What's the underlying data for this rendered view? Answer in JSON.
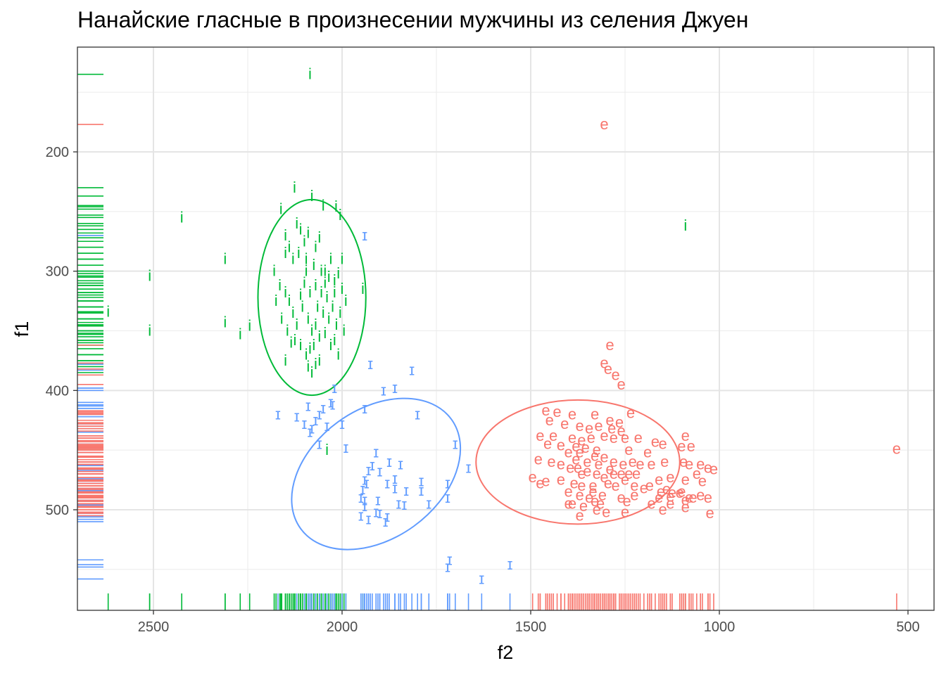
{
  "chart_data": {
    "type": "scatter",
    "title": "Нанайские гласные в произнесении мужчины из селения Джуен",
    "xlabel": "f2",
    "ylabel": "f1",
    "x_reversed": true,
    "y_reversed": true,
    "xlim": [
      2700,
      450
    ],
    "ylim": [
      135,
      568
    ],
    "x_ticks": [
      2500,
      2000,
      1500,
      1000,
      500
    ],
    "y_ticks": [
      200,
      300,
      400,
      500
    ],
    "grid": true,
    "rug": true,
    "ellipses": true,
    "legend": "none",
    "series": [
      {
        "label": "i",
        "color": "#00BA38",
        "ellipse": {
          "cx": 2080,
          "cy": 322,
          "rx": 143,
          "ry": 82,
          "angle": 0
        },
        "points": [
          [
            2085,
            135
          ],
          [
            2620,
            334
          ],
          [
            2510,
            304
          ],
          [
            2510,
            350
          ],
          [
            2425,
            255
          ],
          [
            2310,
            290
          ],
          [
            2310,
            343
          ],
          [
            2270,
            353
          ],
          [
            2245,
            346
          ],
          [
            1090,
            262
          ],
          [
            2040,
            450
          ],
          [
            2162,
            248
          ],
          [
            2126,
            230
          ],
          [
            2080,
            237
          ],
          [
            2050,
            245
          ],
          [
            2016,
            246
          ],
          [
            2005,
            253
          ],
          [
            2150,
            270
          ],
          [
            2120,
            260
          ],
          [
            2110,
            265
          ],
          [
            2100,
            275
          ],
          [
            2090,
            268
          ],
          [
            2070,
            280
          ],
          [
            2060,
            272
          ],
          [
            2030,
            290
          ],
          [
            2140,
            280
          ],
          [
            2130,
            290
          ],
          [
            2115,
            285
          ],
          [
            2095,
            290
          ],
          [
            2075,
            295
          ],
          [
            2055,
            300
          ],
          [
            2045,
            310
          ],
          [
            2020,
            308
          ],
          [
            2010,
            302
          ],
          [
            2000,
            315
          ],
          [
            1990,
            325
          ],
          [
            2180,
            300
          ],
          [
            2165,
            312
          ],
          [
            2150,
            318
          ],
          [
            2140,
            325
          ],
          [
            2130,
            335
          ],
          [
            2120,
            345
          ],
          [
            2105,
            330
          ],
          [
            2090,
            340
          ],
          [
            2080,
            350
          ],
          [
            2070,
            345
          ],
          [
            2065,
            330
          ],
          [
            2050,
            335
          ],
          [
            2040,
            322
          ],
          [
            2035,
            340
          ],
          [
            2025,
            330
          ],
          [
            2015,
            345
          ],
          [
            2005,
            335
          ],
          [
            1995,
            350
          ],
          [
            2175,
            325
          ],
          [
            2160,
            340
          ],
          [
            2145,
            350
          ],
          [
            2135,
            360
          ],
          [
            2125,
            358
          ],
          [
            2110,
            362
          ],
          [
            2095,
            370
          ],
          [
            2085,
            365
          ],
          [
            2075,
            362
          ],
          [
            2060,
            355
          ],
          [
            2045,
            352
          ],
          [
            2030,
            362
          ],
          [
            2020,
            358
          ],
          [
            2010,
            370
          ],
          [
            2100,
            310
          ],
          [
            2085,
            318
          ],
          [
            2070,
            312
          ],
          [
            2055,
            318
          ],
          [
            2045,
            300
          ],
          [
            2035,
            305
          ],
          [
            2020,
            318
          ],
          [
            1945,
            315
          ],
          [
            2150,
            285
          ],
          [
            2095,
            300
          ],
          [
            2110,
            320
          ],
          [
            2000,
            290
          ],
          [
            2090,
            380
          ],
          [
            2070,
            378
          ],
          [
            2080,
            385
          ],
          [
            2060,
            375
          ],
          [
            2150,
            375
          ]
        ]
      },
      {
        "label": "ɪ",
        "color": "#619CFF",
        "ellipse": {
          "cx": 1910,
          "cy": 470,
          "rx": 171,
          "ry": 78,
          "angle": 54
        },
        "points": [
          [
            1940,
            270
          ],
          [
            1925,
            378
          ],
          [
            1815,
            383
          ],
          [
            1860,
            398
          ],
          [
            1890,
            400
          ],
          [
            2020,
            398
          ],
          [
            2030,
            410
          ],
          [
            2025,
            412
          ],
          [
            1940,
            415
          ],
          [
            2170,
            420
          ],
          [
            2120,
            422
          ],
          [
            2090,
            413
          ],
          [
            2060,
            420
          ],
          [
            2050,
            415
          ],
          [
            2100,
            428
          ],
          [
            2080,
            432
          ],
          [
            2070,
            425
          ],
          [
            2040,
            430
          ],
          [
            2000,
            428
          ],
          [
            2085,
            435
          ],
          [
            2060,
            445
          ],
          [
            1990,
            448
          ],
          [
            1800,
            420
          ],
          [
            1910,
            452
          ],
          [
            1700,
            445
          ],
          [
            1665,
            465
          ],
          [
            1920,
            463
          ],
          [
            1875,
            460
          ],
          [
            1845,
            462
          ],
          [
            1930,
            467
          ],
          [
            1900,
            468
          ],
          [
            1860,
            474
          ],
          [
            1940,
            475
          ],
          [
            1935,
            478
          ],
          [
            1880,
            478
          ],
          [
            1790,
            476
          ],
          [
            1720,
            478
          ],
          [
            1945,
            483
          ],
          [
            1860,
            482
          ],
          [
            1830,
            484
          ],
          [
            1790,
            484
          ],
          [
            1950,
            490
          ],
          [
            1940,
            492
          ],
          [
            1905,
            492
          ],
          [
            1940,
            497
          ],
          [
            1850,
            495
          ],
          [
            1835,
            496
          ],
          [
            1770,
            495
          ],
          [
            1720,
            490
          ],
          [
            1910,
            502
          ],
          [
            1900,
            503
          ],
          [
            1950,
            505
          ],
          [
            1930,
            508
          ],
          [
            1880,
            506
          ],
          [
            1885,
            510
          ],
          [
            1715,
            542
          ],
          [
            1720,
            548
          ],
          [
            1630,
            558
          ],
          [
            1555,
            546
          ]
        ]
      },
      {
        "label": "e",
        "color": "#F8766D",
        "ellipse": {
          "cx": 1375,
          "cy": 460,
          "rx": 270,
          "ry": 52,
          "angle": 0
        },
        "points": [
          [
            1305,
            177
          ],
          [
            1290,
            362
          ],
          [
            1305,
            377
          ],
          [
            1295,
            382
          ],
          [
            1275,
            387
          ],
          [
            1260,
            395
          ],
          [
            1235,
            419
          ],
          [
            1460,
            417
          ],
          [
            1430,
            418
          ],
          [
            1390,
            420
          ],
          [
            1330,
            420
          ],
          [
            1290,
            425
          ],
          [
            1265,
            427
          ],
          [
            1450,
            425
          ],
          [
            1410,
            428
          ],
          [
            1370,
            430
          ],
          [
            1345,
            432
          ],
          [
            1320,
            430
          ],
          [
            1285,
            432
          ],
          [
            1260,
            434
          ],
          [
            1090,
            438
          ],
          [
            1475,
            438
          ],
          [
            1440,
            438
          ],
          [
            1390,
            440
          ],
          [
            1365,
            442
          ],
          [
            1340,
            440
          ],
          [
            1305,
            438
          ],
          [
            1280,
            440
          ],
          [
            1250,
            440
          ],
          [
            1215,
            440
          ],
          [
            1170,
            443
          ],
          [
            1100,
            447
          ],
          [
            1455,
            445
          ],
          [
            1420,
            446
          ],
          [
            1380,
            447
          ],
          [
            1355,
            448
          ],
          [
            1325,
            450
          ],
          [
            1240,
            450
          ],
          [
            1190,
            452
          ],
          [
            1150,
            445
          ],
          [
            1075,
            447
          ],
          [
            1400,
            452
          ],
          [
            1370,
            452
          ],
          [
            1330,
            455
          ],
          [
            1305,
            456
          ],
          [
            1280,
            460
          ],
          [
            1255,
            462
          ],
          [
            1230,
            460
          ],
          [
            1210,
            462
          ],
          [
            1180,
            462
          ],
          [
            1145,
            460
          ],
          [
            1095,
            460
          ],
          [
            1080,
            462
          ],
          [
            1050,
            462
          ],
          [
            1030,
            465
          ],
          [
            1015,
            466
          ],
          [
            1480,
            458
          ],
          [
            1445,
            460
          ],
          [
            1420,
            462
          ],
          [
            1395,
            465
          ],
          [
            1375,
            465
          ],
          [
            1350,
            468
          ],
          [
            1325,
            470
          ],
          [
            1305,
            473
          ],
          [
            1280,
            470
          ],
          [
            1250,
            475
          ],
          [
            1240,
            470
          ],
          [
            1220,
            470
          ],
          [
            1160,
            475
          ],
          [
            1130,
            473
          ],
          [
            1090,
            475
          ],
          [
            1060,
            470
          ],
          [
            1045,
            476
          ],
          [
            1495,
            473
          ],
          [
            1460,
            476
          ],
          [
            1420,
            475
          ],
          [
            1385,
            478
          ],
          [
            1365,
            480
          ],
          [
            1335,
            480
          ],
          [
            1295,
            478
          ],
          [
            1275,
            480
          ],
          [
            1225,
            480
          ],
          [
            1200,
            482
          ],
          [
            1185,
            480
          ],
          [
            1155,
            485
          ],
          [
            1140,
            483
          ],
          [
            1125,
            486
          ],
          [
            1100,
            485
          ],
          [
            1475,
            478
          ],
          [
            1400,
            485
          ],
          [
            1370,
            488
          ],
          [
            1345,
            490
          ],
          [
            1310,
            488
          ],
          [
            1260,
            490
          ],
          [
            1225,
            488
          ],
          [
            1160,
            490
          ],
          [
            1130,
            489
          ],
          [
            1105,
            486
          ],
          [
            1090,
            492
          ],
          [
            1070,
            490
          ],
          [
            1050,
            488
          ],
          [
            1030,
            490
          ],
          [
            1400,
            495
          ],
          [
            1360,
            497
          ],
          [
            1330,
            493
          ],
          [
            1315,
            495
          ],
          [
            1245,
            493
          ],
          [
            1180,
            495
          ],
          [
            1130,
            495
          ],
          [
            1080,
            490
          ],
          [
            1370,
            505
          ],
          [
            1325,
            500
          ],
          [
            1300,
            502
          ],
          [
            1250,
            502
          ],
          [
            1150,
            500
          ],
          [
            1090,
            498
          ],
          [
            1025,
            503
          ],
          [
            1390,
            495
          ],
          [
            1335,
            485
          ],
          [
            1365,
            470
          ],
          [
            1320,
            462
          ],
          [
            1350,
            460
          ],
          [
            1380,
            458
          ],
          [
            1290,
            466
          ],
          [
            1260,
            470
          ],
          [
            530,
            449
          ]
        ]
      }
    ]
  }
}
